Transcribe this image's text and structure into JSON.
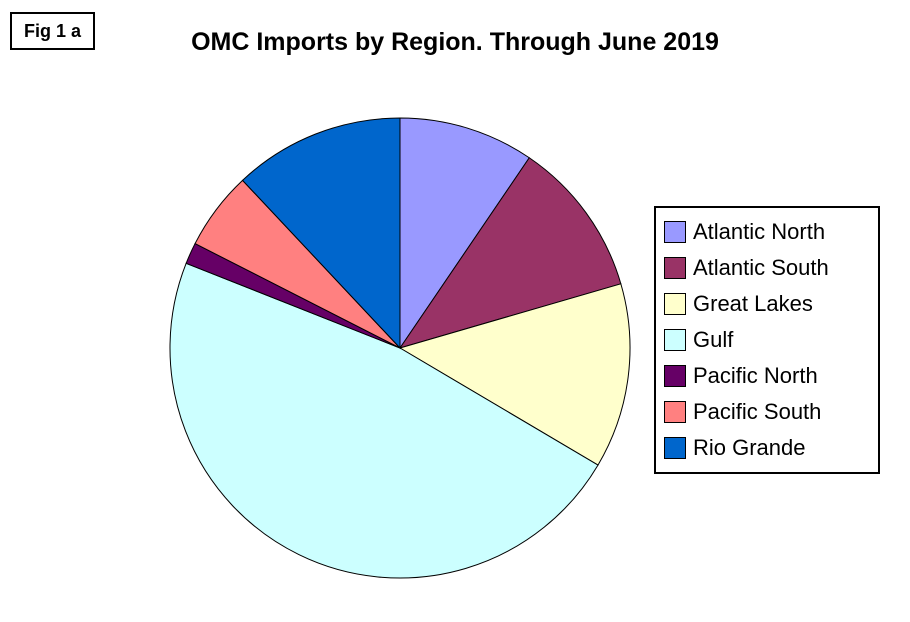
{
  "fig_label": "Fig 1 a",
  "title": "OMC Imports by Region. Through June 2019",
  "chart_data": {
    "type": "pie",
    "title": "OMC Imports by Region. Through June 2019",
    "labels": [
      "Atlantic North",
      "Atlantic South",
      "Great Lakes",
      "Gulf",
      "Pacific North",
      "Pacific South",
      "Rio Grande"
    ],
    "values": [
      9.5,
      11,
      13,
      47.5,
      1.5,
      5.5,
      12
    ],
    "units": "% of total (estimated from slice angles)",
    "colors": [
      "#9999FF",
      "#993366",
      "#FFFFCC",
      "#CCFFFF",
      "#660066",
      "#FF8080",
      "#0066CC"
    ],
    "start_angle_deg": 0,
    "direction": "clockwise",
    "legend_position": "right",
    "slice_border_color": "#000000"
  }
}
